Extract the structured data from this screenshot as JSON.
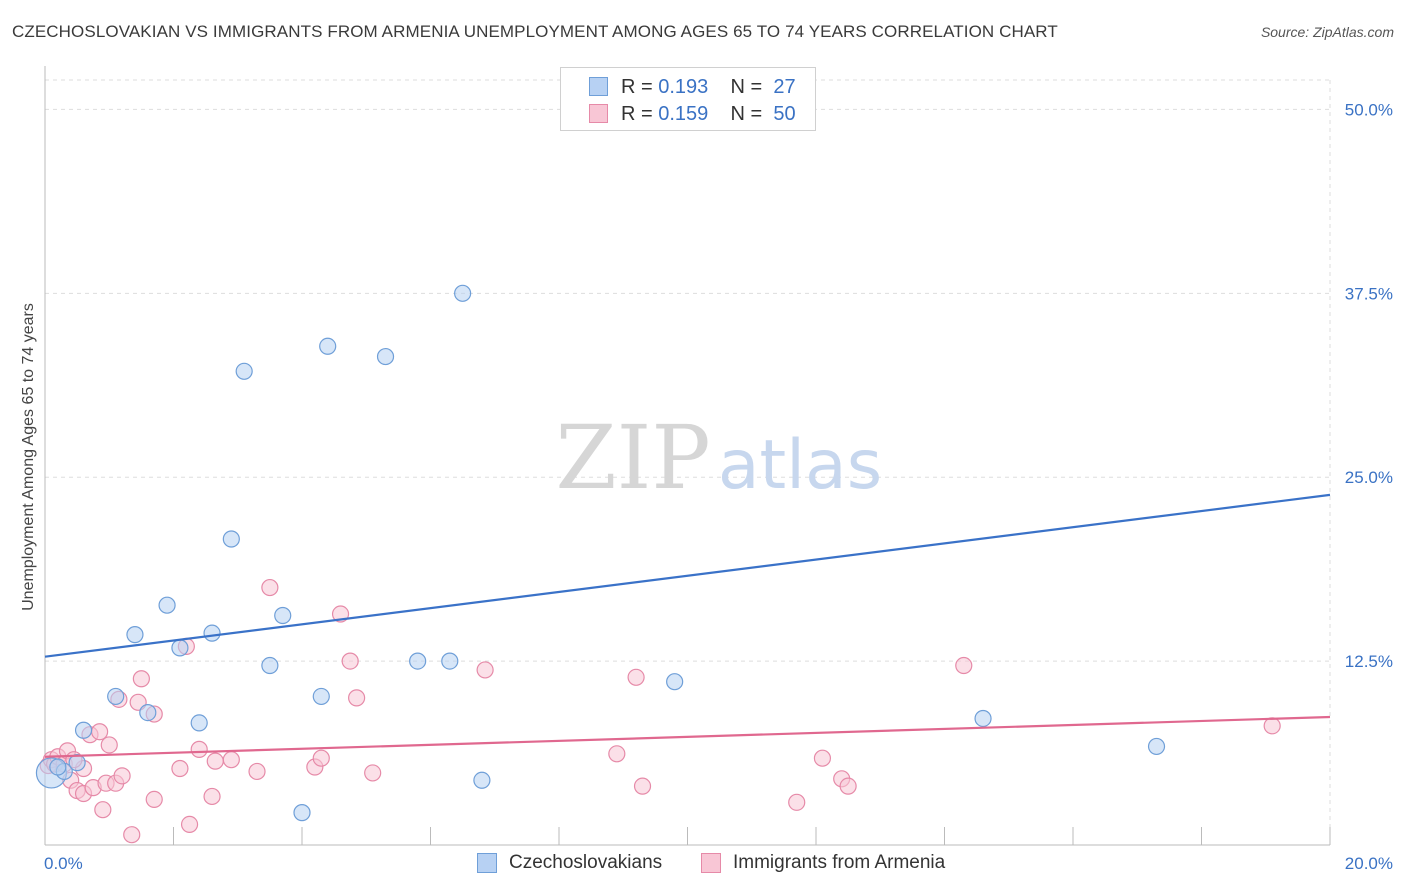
{
  "title": "CZECHOSLOVAKIAN VS IMMIGRANTS FROM ARMENIA UNEMPLOYMENT AMONG AGES 65 TO 74 YEARS CORRELATION CHART",
  "source": "Source: ZipAtlas.com",
  "watermark": {
    "zip": "ZIP",
    "atlas": "atlas"
  },
  "colors": {
    "blue_fill": "#b7d1f3",
    "blue_stroke": "#6f9fd8",
    "blue_line": "#3a72c8",
    "pink_fill": "#f8c6d5",
    "pink_stroke": "#e68aa8",
    "pink_line": "#e0688f",
    "value_text": "#3a72c4",
    "grid": "#dddddd"
  },
  "legend": {
    "rows": [
      {
        "r_label": "R =",
        "r_value": "0.193",
        "n_label": "N =",
        "n_value": "27"
      },
      {
        "r_label": "R =",
        "r_value": "0.159",
        "n_label": "N =",
        "n_value": "50"
      }
    ]
  },
  "chart_data": {
    "type": "scatter",
    "title": "CZECHOSLOVAKIAN VS IMMIGRANTS FROM ARMENIA UNEMPLOYMENT AMONG AGES 65 TO 74 YEARS CORRELATION CHART",
    "xlabel": "",
    "ylabel": "Unemployment Among Ages 65 to 74 years",
    "xlim": [
      0,
      20
    ],
    "ylim": [
      0,
      52
    ],
    "x_tick_labels": [
      "0.0%",
      "20.0%"
    ],
    "y_ticks": [
      12.5,
      25.0,
      37.5,
      50.0
    ],
    "y_tick_labels": [
      "12.5%",
      "25.0%",
      "37.5%",
      "50.0%"
    ],
    "grid": true,
    "legend_position": "top-center",
    "series": [
      {
        "name": "Czechoslovakians",
        "color": "#6f9fd8",
        "trend": {
          "x": [
            0,
            20
          ],
          "y": [
            12.8,
            23.8
          ]
        },
        "points": [
          {
            "x": 0.1,
            "y": 4.9,
            "size": "large"
          },
          {
            "x": 0.3,
            "y": 5.0
          },
          {
            "x": 0.6,
            "y": 7.8
          },
          {
            "x": 1.1,
            "y": 10.1
          },
          {
            "x": 1.4,
            "y": 14.3
          },
          {
            "x": 1.6,
            "y": 9.0
          },
          {
            "x": 1.9,
            "y": 16.3
          },
          {
            "x": 2.1,
            "y": 13.4
          },
          {
            "x": 2.4,
            "y": 8.3
          },
          {
            "x": 2.6,
            "y": 14.4
          },
          {
            "x": 2.9,
            "y": 20.8
          },
          {
            "x": 3.1,
            "y": 32.2
          },
          {
            "x": 3.5,
            "y": 12.2
          },
          {
            "x": 3.7,
            "y": 15.6
          },
          {
            "x": 4.0,
            "y": 2.2
          },
          {
            "x": 4.3,
            "y": 10.1
          },
          {
            "x": 4.4,
            "y": 33.9
          },
          {
            "x": 5.3,
            "y": 33.2
          },
          {
            "x": 5.8,
            "y": 12.5
          },
          {
            "x": 6.3,
            "y": 12.5
          },
          {
            "x": 6.5,
            "y": 37.5
          },
          {
            "x": 6.8,
            "y": 4.4
          },
          {
            "x": 9.8,
            "y": 11.1
          },
          {
            "x": 14.6,
            "y": 8.6
          },
          {
            "x": 17.3,
            "y": 6.7
          },
          {
            "x": 0.2,
            "y": 5.3
          },
          {
            "x": 0.5,
            "y": 5.6
          }
        ]
      },
      {
        "name": "Immigrants from Armenia",
        "color": "#e68aa8",
        "trend": {
          "x": [
            0,
            20
          ],
          "y": [
            6.0,
            8.7
          ]
        },
        "points": [
          {
            "x": 0.05,
            "y": 5.4
          },
          {
            "x": 0.1,
            "y": 5.8
          },
          {
            "x": 0.15,
            "y": 5.5
          },
          {
            "x": 0.2,
            "y": 6.0
          },
          {
            "x": 0.3,
            "y": 5.5
          },
          {
            "x": 0.35,
            "y": 6.4
          },
          {
            "x": 0.4,
            "y": 4.4
          },
          {
            "x": 0.5,
            "y": 3.7
          },
          {
            "x": 0.6,
            "y": 3.5
          },
          {
            "x": 0.6,
            "y": 5.2
          },
          {
            "x": 0.7,
            "y": 7.5
          },
          {
            "x": 0.75,
            "y": 3.9
          },
          {
            "x": 0.85,
            "y": 7.7
          },
          {
            "x": 0.9,
            "y": 2.4
          },
          {
            "x": 0.95,
            "y": 4.2
          },
          {
            "x": 1.0,
            "y": 6.8
          },
          {
            "x": 1.1,
            "y": 4.2
          },
          {
            "x": 1.15,
            "y": 9.9
          },
          {
            "x": 1.2,
            "y": 4.7
          },
          {
            "x": 1.35,
            "y": 0.7
          },
          {
            "x": 1.45,
            "y": 9.7
          },
          {
            "x": 1.5,
            "y": 11.3
          },
          {
            "x": 1.7,
            "y": 3.1
          },
          {
            "x": 1.7,
            "y": 8.9
          },
          {
            "x": 2.1,
            "y": 5.2
          },
          {
            "x": 2.2,
            "y": 13.5
          },
          {
            "x": 2.25,
            "y": 1.4
          },
          {
            "x": 2.4,
            "y": 6.5
          },
          {
            "x": 2.6,
            "y": 3.3
          },
          {
            "x": 2.65,
            "y": 5.7
          },
          {
            "x": 2.9,
            "y": 5.8
          },
          {
            "x": 3.3,
            "y": 5.0
          },
          {
            "x": 3.5,
            "y": 17.5
          },
          {
            "x": 4.2,
            "y": 5.3
          },
          {
            "x": 4.3,
            "y": 5.9
          },
          {
            "x": 4.6,
            "y": 15.7
          },
          {
            "x": 4.75,
            "y": 12.5
          },
          {
            "x": 4.85,
            "y": 10.0
          },
          {
            "x": 5.1,
            "y": 4.9
          },
          {
            "x": 6.85,
            "y": 11.9
          },
          {
            "x": 8.9,
            "y": 6.2
          },
          {
            "x": 9.2,
            "y": 11.4
          },
          {
            "x": 9.3,
            "y": 4.0
          },
          {
            "x": 11.7,
            "y": 2.9
          },
          {
            "x": 12.1,
            "y": 5.9
          },
          {
            "x": 12.4,
            "y": 4.5
          },
          {
            "x": 12.5,
            "y": 4.0
          },
          {
            "x": 14.3,
            "y": 12.2
          },
          {
            "x": 19.1,
            "y": 8.1
          },
          {
            "x": 0.45,
            "y": 5.8
          }
        ]
      }
    ]
  }
}
